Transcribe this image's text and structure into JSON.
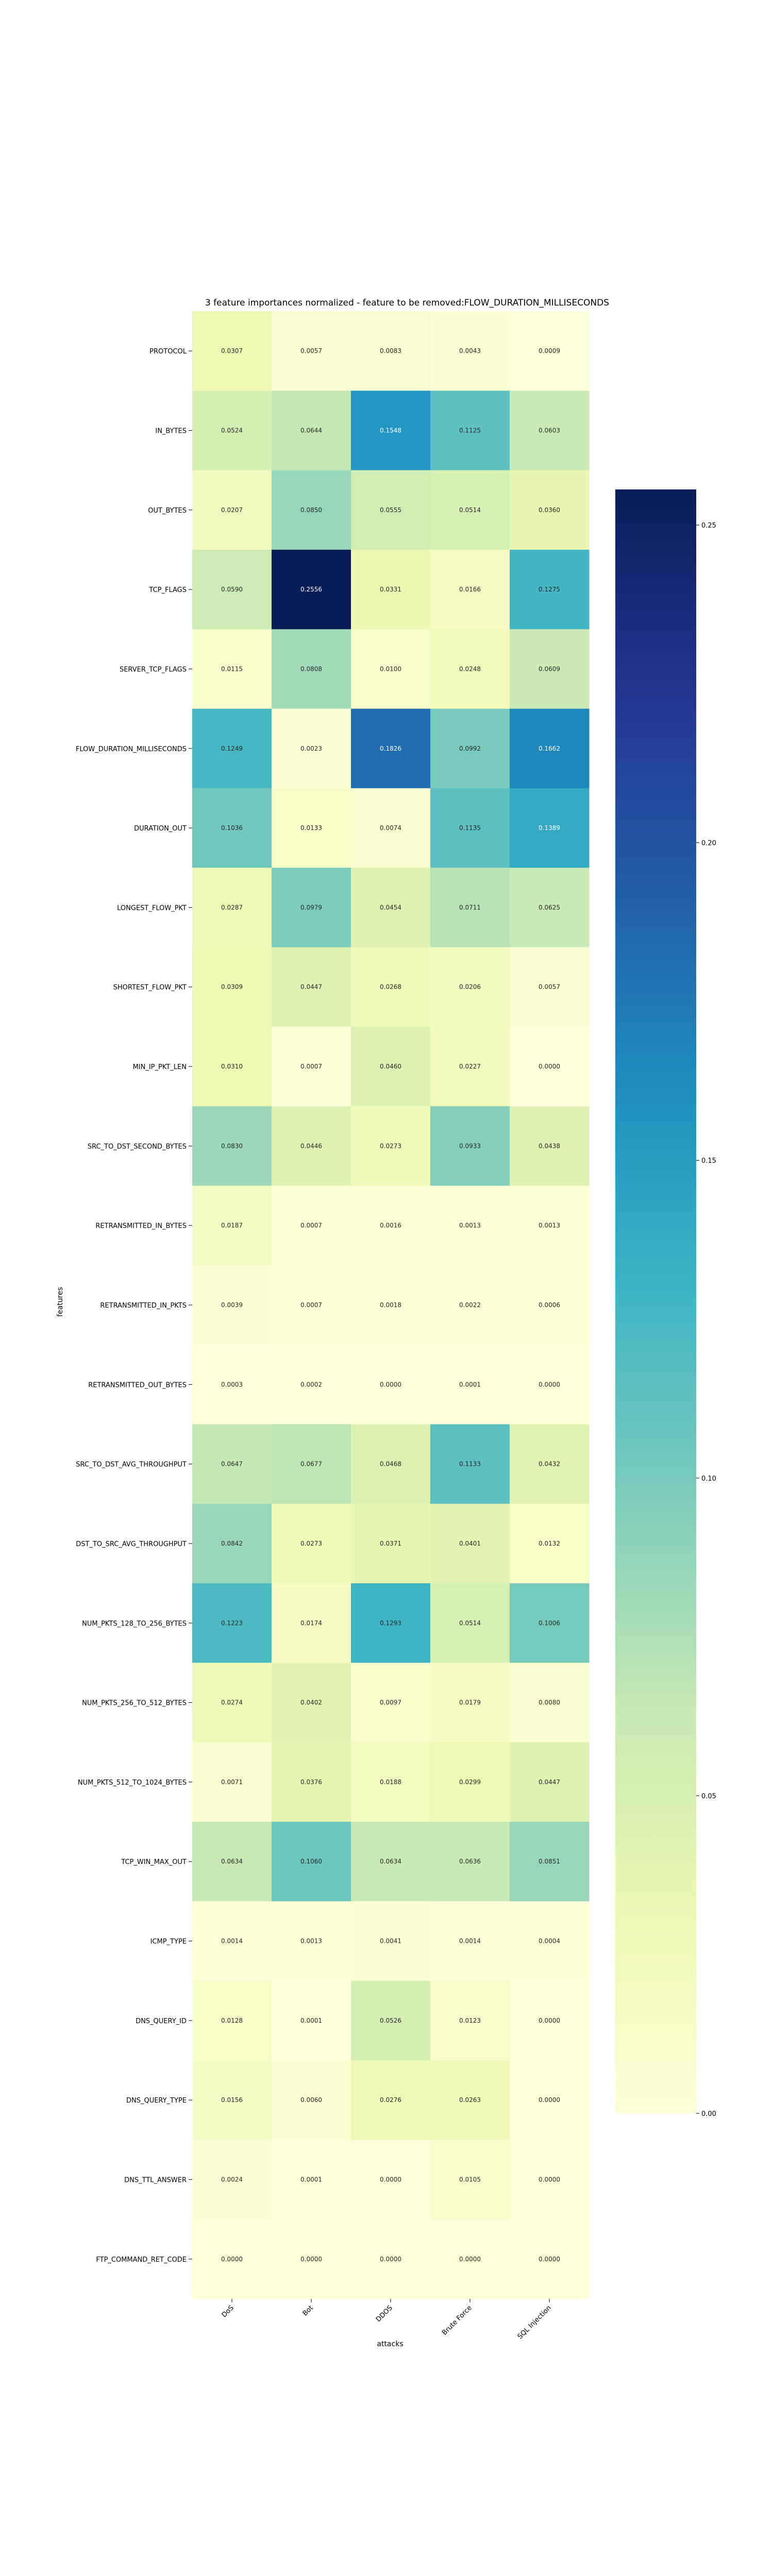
{
  "chart_data": {
    "type": "heatmap",
    "title": "3 feature importances normalized - feature to be removed:FLOW_DURATION_MILLISECONDS",
    "xlabel": "attacks",
    "ylabel": "features",
    "columns": [
      "DoS",
      "Bot",
      "DDOS",
      "Brute Force",
      "SQL Injection"
    ],
    "rows": [
      "PROTOCOL",
      "IN_BYTES",
      "OUT_BYTES",
      "TCP_FLAGS",
      "SERVER_TCP_FLAGS",
      "FLOW_DURATION_MILLISECONDS",
      "DURATION_OUT",
      "LONGEST_FLOW_PKT",
      "SHORTEST_FLOW_PKT",
      "MIN_IP_PKT_LEN",
      "SRC_TO_DST_SECOND_BYTES",
      "RETRANSMITTED_IN_BYTES",
      "RETRANSMITTED_IN_PKTS",
      "RETRANSMITTED_OUT_BYTES",
      "SRC_TO_DST_AVG_THROUGHPUT",
      "DST_TO_SRC_AVG_THROUGHPUT",
      "NUM_PKTS_128_TO_256_BYTES",
      "NUM_PKTS_256_TO_512_BYTES",
      "NUM_PKTS_512_TO_1024_BYTES",
      "TCP_WIN_MAX_OUT",
      "ICMP_TYPE",
      "DNS_QUERY_ID",
      "DNS_QUERY_TYPE",
      "DNS_TTL_ANSWER",
      "FTP_COMMAND_RET_CODE"
    ],
    "values": [
      [
        0.0307,
        0.0057,
        0.0083,
        0.0043,
        0.0009
      ],
      [
        0.0524,
        0.0644,
        0.1548,
        0.1125,
        0.0603
      ],
      [
        0.0207,
        0.085,
        0.0555,
        0.0514,
        0.036
      ],
      [
        0.059,
        0.2556,
        0.0331,
        0.0166,
        0.1275
      ],
      [
        0.0115,
        0.0808,
        0.01,
        0.0248,
        0.0609
      ],
      [
        0.1249,
        0.0023,
        0.1826,
        0.0992,
        0.1662
      ],
      [
        0.1036,
        0.0133,
        0.0074,
        0.1135,
        0.1389
      ],
      [
        0.0287,
        0.0979,
        0.0454,
        0.0711,
        0.0625
      ],
      [
        0.0309,
        0.0447,
        0.0268,
        0.0206,
        0.0057
      ],
      [
        0.031,
        0.0007,
        0.046,
        0.0227,
        0.0
      ],
      [
        0.083,
        0.0446,
        0.0273,
        0.0933,
        0.0438
      ],
      [
        0.0187,
        0.0007,
        0.0016,
        0.0013,
        0.0013
      ],
      [
        0.0039,
        0.0007,
        0.0018,
        0.0022,
        0.0006
      ],
      [
        0.0003,
        0.0002,
        0.0,
        0.0001,
        0.0
      ],
      [
        0.0647,
        0.0677,
        0.0468,
        0.1133,
        0.0432
      ],
      [
        0.0842,
        0.0273,
        0.0371,
        0.0401,
        0.0132
      ],
      [
        0.1223,
        0.0174,
        0.1293,
        0.0514,
        0.1006
      ],
      [
        0.0274,
        0.0402,
        0.0097,
        0.0179,
        0.008
      ],
      [
        0.0071,
        0.0376,
        0.0188,
        0.0299,
        0.0447
      ],
      [
        0.0634,
        0.106,
        0.0634,
        0.0636,
        0.0851
      ],
      [
        0.0014,
        0.0013,
        0.0041,
        0.0014,
        0.0004
      ],
      [
        0.0128,
        0.0001,
        0.0526,
        0.0123,
        0.0
      ],
      [
        0.0156,
        0.006,
        0.0276,
        0.0263,
        0.0
      ],
      [
        0.0024,
        0.0001,
        0.0,
        0.0105,
        0.0
      ],
      [
        0.0,
        0.0,
        0.0,
        0.0,
        0.0
      ]
    ],
    "colormap": "YlGnBu",
    "vmin": 0,
    "vmax": 0.2556,
    "colorbar_ticks": [
      0.0,
      0.05,
      0.1,
      0.15,
      0.2,
      0.25
    ],
    "colorbar_tick_labels": [
      "0.00",
      "0.05",
      "0.10",
      "0.15",
      "0.20",
      "0.25"
    ],
    "value_format": "4 decimals",
    "legend": "colorbar right"
  }
}
